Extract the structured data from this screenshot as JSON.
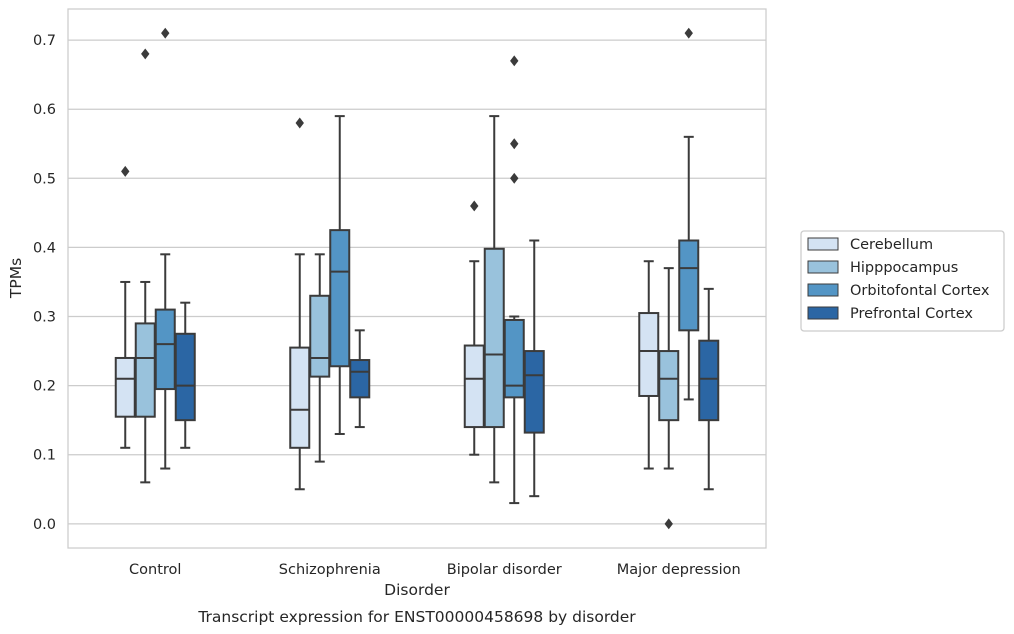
{
  "chart_data": {
    "type": "box",
    "title": "",
    "caption": "Transcript expression for ENST00000458698 by disorder",
    "xlabel": "Disorder",
    "ylabel": "TPMs",
    "ylim": [
      -0.035,
      0.745
    ],
    "yticks": [
      "0.0",
      "0.1",
      "0.2",
      "0.3",
      "0.4",
      "0.5",
      "0.6",
      "0.7"
    ],
    "ytick_values": [
      0,
      0.1,
      0.2,
      0.3,
      0.4,
      0.5,
      0.6,
      0.7
    ],
    "grid": "horizontal",
    "legend_position": "right",
    "categories": [
      "Control",
      "Schizophrenia",
      "Bipolar disorder",
      "Major depression"
    ],
    "series": [
      {
        "name": "Cerebellum",
        "color": "#d4e3f3",
        "boxes": [
          {
            "whislo": 0.11,
            "q1": 0.155,
            "median": 0.21,
            "q3": 0.24,
            "whishi": 0.35,
            "fliers": [
              0.51
            ]
          },
          {
            "whislo": 0.05,
            "q1": 0.11,
            "median": 0.165,
            "q3": 0.255,
            "whishi": 0.39,
            "fliers": [
              0.58
            ]
          },
          {
            "whislo": 0.1,
            "q1": 0.14,
            "median": 0.21,
            "q3": 0.258,
            "whishi": 0.38,
            "fliers": [
              0.46
            ]
          },
          {
            "whislo": 0.08,
            "q1": 0.185,
            "median": 0.25,
            "q3": 0.305,
            "whishi": 0.38,
            "fliers": []
          }
        ]
      },
      {
        "name": "Hipppocampus",
        "color": "#99c2dc",
        "boxes": [
          {
            "whislo": 0.06,
            "q1": 0.155,
            "median": 0.24,
            "q3": 0.29,
            "whishi": 0.35,
            "fliers": [
              0.68
            ]
          },
          {
            "whislo": 0.09,
            "q1": 0.213,
            "median": 0.24,
            "q3": 0.33,
            "whishi": 0.39,
            "fliers": []
          },
          {
            "whislo": 0.06,
            "q1": 0.14,
            "median": 0.245,
            "q3": 0.398,
            "whishi": 0.59,
            "fliers": []
          },
          {
            "whislo": 0.08,
            "q1": 0.15,
            "median": 0.21,
            "q3": 0.25,
            "whishi": 0.37,
            "fliers": [
              0.0
            ]
          }
        ]
      },
      {
        "name": "Orbitofontal Cortex",
        "color": "#5395c5",
        "boxes": [
          {
            "whislo": 0.08,
            "q1": 0.195,
            "median": 0.26,
            "q3": 0.31,
            "whishi": 0.39,
            "fliers": [
              0.71
            ]
          },
          {
            "whislo": 0.13,
            "q1": 0.228,
            "median": 0.365,
            "q3": 0.425,
            "whishi": 0.59,
            "fliers": []
          },
          {
            "whislo": 0.03,
            "q1": 0.183,
            "median": 0.2,
            "q3": 0.295,
            "whishi": 0.3,
            "fliers": [
              0.5,
              0.55,
              0.67
            ]
          },
          {
            "whislo": 0.18,
            "q1": 0.28,
            "median": 0.37,
            "q3": 0.41,
            "whishi": 0.56,
            "fliers": [
              0.71
            ]
          }
        ]
      },
      {
        "name": "Prefrontal Cortex",
        "color": "#2b66a4",
        "boxes": [
          {
            "whislo": 0.11,
            "q1": 0.15,
            "median": 0.2,
            "q3": 0.275,
            "whishi": 0.32,
            "fliers": []
          },
          {
            "whislo": 0.14,
            "q1": 0.183,
            "median": 0.22,
            "q3": 0.237,
            "whishi": 0.28,
            "fliers": []
          },
          {
            "whislo": 0.04,
            "q1": 0.132,
            "median": 0.215,
            "q3": 0.25,
            "whishi": 0.41,
            "fliers": []
          },
          {
            "whislo": 0.05,
            "q1": 0.15,
            "median": 0.21,
            "q3": 0.265,
            "whishi": 0.34,
            "fliers": []
          }
        ]
      }
    ]
  }
}
